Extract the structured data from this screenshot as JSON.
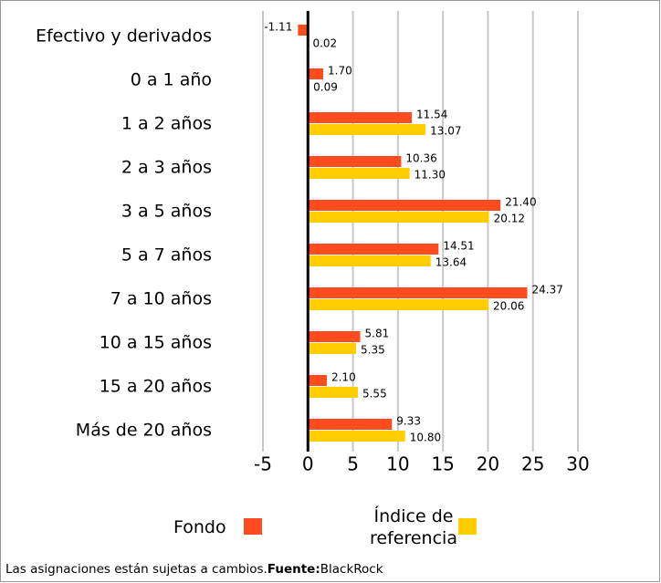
{
  "chart_data": {
    "type": "hbar",
    "categories": [
      "Efectivo y derivados",
      "0 a 1 año",
      "1 a 2 años",
      "2 a 3 años",
      "3 a 5 años",
      "5 a 7 años",
      "7 a 10 años",
      "10 a 15 años",
      "15 a 20 años",
      "Más de 20 años"
    ],
    "series": [
      {
        "name": "Fondo",
        "color": "#ff4b1e",
        "values": [
          -1.11,
          1.7,
          11.54,
          10.36,
          21.4,
          14.51,
          24.37,
          5.81,
          2.1,
          9.33
        ],
        "value_labels": [
          "-1.11",
          "1.70",
          "11.54",
          "10.36",
          "21.40",
          "14.51",
          "24.37",
          "5.81",
          "2.10",
          "9.33"
        ]
      },
      {
        "name": "Índice de referencia",
        "color": "#ffce00",
        "values": [
          0.02,
          0.09,
          13.07,
          11.3,
          20.12,
          13.64,
          20.06,
          5.35,
          5.55,
          10.8
        ],
        "value_labels": [
          "0.02",
          "0.09",
          "13.07",
          "11.30",
          "20.12",
          "13.64",
          "20.06",
          "5.35",
          "5.55",
          "10.80"
        ]
      }
    ],
    "xlim": [
      -5,
      30
    ],
    "xticks": [
      -5,
      0,
      5,
      10,
      15,
      20,
      25,
      30
    ],
    "grid": true
  },
  "footer": {
    "text": "Las asignaciones están sujetas a cambios.",
    "source_label": "Fuente:",
    "source": "BlackRock"
  }
}
